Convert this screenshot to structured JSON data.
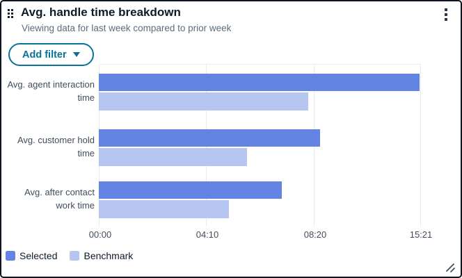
{
  "header": {
    "title": "Avg. handle time breakdown",
    "subtitle": "Viewing data for last week compared to prior week"
  },
  "toolbar": {
    "add_filter_label": "Add filter"
  },
  "icons": {
    "drag_handle": "drag-dots-grid",
    "kebab_menu": "vertical-three-dots",
    "caret_down": "filled-triangle-down",
    "resize": "diagonal-resize-grip"
  },
  "colors": {
    "selected_bar": "#6384E3",
    "benchmark_bar": "#B7C6F1",
    "button_teal": "#097298",
    "gridline": "#E9EBED",
    "title_text": "#0F1B2A",
    "subtitle_text": "#5F6B7A",
    "axis_text": "#414D5C",
    "card_border": "#0D1520"
  },
  "chart_data": {
    "type": "bar",
    "orientation": "horizontal",
    "title": "Avg. handle time breakdown",
    "categories": [
      "Avg. agent interaction time",
      "Avg. customer hold time",
      "Avg. after contact work time"
    ],
    "series": [
      {
        "name": "Selected",
        "color": "#6384E3",
        "values_time": [
          "15:21",
          "08:30",
          "07:05"
        ],
        "values_pct_of_axis": [
          99.6,
          68.7,
          56.8
        ]
      },
      {
        "name": "Benchmark",
        "color": "#B7C6F1",
        "values_time": [
          "08:20",
          "05:45",
          "05:00"
        ],
        "values_pct_of_axis": [
          65,
          46,
          40.4
        ]
      }
    ],
    "x_ticks": [
      "00:00",
      "04:10",
      "08:20",
      "15:21"
    ],
    "x_axis_range": [
      "00:00",
      "15:21"
    ],
    "grid": "vertical-gridlines",
    "legend_position": "bottom-left"
  }
}
